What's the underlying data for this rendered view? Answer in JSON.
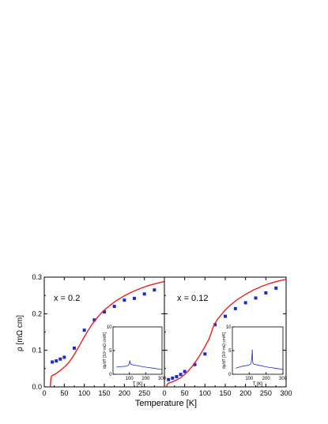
{
  "chart_data": [
    {
      "type": "line",
      "panel_label": "x = 0.2",
      "xlabel": "Temperature [K]",
      "ylabel": "ρ [mΩ cm]",
      "xlim": [
        0,
        300
      ],
      "ylim": [
        0,
        0.3
      ],
      "x_ticks": [
        "0",
        "50",
        "100",
        "150",
        "200",
        "250"
      ],
      "y_ticks": [
        "0.0",
        "0.1",
        "0.2",
        "0.3"
      ],
      "series": [
        {
          "kind": "scatter",
          "marker": "square",
          "color": "#1a2bd6",
          "x": [
            20,
            30,
            40,
            50,
            75,
            100,
            125,
            150,
            175,
            200,
            225,
            250,
            275
          ],
          "y": [
            0.068,
            0.071,
            0.076,
            0.081,
            0.106,
            0.155,
            0.183,
            0.205,
            0.22,
            0.237,
            0.242,
            0.254,
            0.265
          ]
        },
        {
          "kind": "line",
          "color": "#e8201e",
          "x": [
            15,
            16,
            17,
            18,
            20,
            25,
            30,
            40,
            50,
            60,
            70,
            80,
            90,
            100,
            110,
            120,
            130,
            140,
            150,
            160,
            170,
            180,
            200,
            220,
            240,
            260,
            280,
            300
          ],
          "y": [
            0.0,
            0.015,
            0.025,
            0.029,
            0.031,
            0.034,
            0.037,
            0.045,
            0.054,
            0.065,
            0.08,
            0.098,
            0.117,
            0.137,
            0.155,
            0.172,
            0.186,
            0.199,
            0.21,
            0.219,
            0.228,
            0.236,
            0.249,
            0.26,
            0.269,
            0.277,
            0.283,
            0.288
          ]
        }
      ],
      "inset": {
        "xlabel": "T [K]",
        "ylabel": "dρ/dT [10³ mΩ cm/K]",
        "xlim": [
          0,
          300
        ],
        "ylim": [
          0,
          10
        ],
        "x_ticks": [
          "100",
          "200",
          "300"
        ],
        "y_ticks": [
          "0",
          "5",
          "10"
        ],
        "series": [
          {
            "kind": "line",
            "color": "#1a2bd6",
            "x": [
              20,
              40,
              60,
              80,
              95,
              100,
              103,
              106,
              110,
              120,
              140,
              160,
              180,
              200,
              220,
              240,
              260,
              280,
              300
            ],
            "y": [
              1.5,
              1.6,
              1.65,
              1.7,
              1.9,
              2.3,
              2.9,
              2.4,
              2.1,
              2.0,
              1.85,
              1.75,
              1.6,
              1.5,
              1.4,
              1.3,
              1.2,
              1.1,
              1.0
            ]
          }
        ]
      }
    },
    {
      "type": "line",
      "panel_label": "x = 0.12",
      "xlabel": "Temperature [K]",
      "xlim": [
        0,
        300
      ],
      "ylim": [
        0,
        0.3
      ],
      "x_ticks": [
        "0",
        "50",
        "100",
        "150",
        "200",
        "250",
        "300"
      ],
      "series": [
        {
          "kind": "scatter",
          "marker": "square",
          "color": "#1a2bd6",
          "x": [
            10,
            20,
            30,
            40,
            50,
            75,
            100,
            125,
            150,
            175,
            200,
            225,
            250,
            275
          ],
          "y": [
            0.02,
            0.024,
            0.028,
            0.034,
            0.042,
            0.061,
            0.09,
            0.17,
            0.193,
            0.214,
            0.23,
            0.243,
            0.257,
            0.27
          ]
        },
        {
          "kind": "line",
          "color": "#e8201e",
          "x": [
            5,
            7,
            10,
            15,
            20,
            30,
            40,
            50,
            60,
            70,
            80,
            90,
            100,
            110,
            115,
            120,
            125,
            130,
            140,
            150,
            160,
            180,
            200,
            220,
            240,
            260,
            280,
            300
          ],
          "y": [
            0.0,
            0.007,
            0.01,
            0.012,
            0.014,
            0.019,
            0.025,
            0.034,
            0.045,
            0.058,
            0.074,
            0.091,
            0.11,
            0.131,
            0.146,
            0.163,
            0.174,
            0.183,
            0.197,
            0.21,
            0.221,
            0.239,
            0.253,
            0.265,
            0.275,
            0.283,
            0.289,
            0.294
          ]
        }
      ],
      "inset": {
        "xlabel": "T [K]",
        "ylabel": "dρ/dT [10³ mΩ cm/K]",
        "xlim": [
          0,
          300
        ],
        "ylim": [
          0,
          10
        ],
        "x_ticks": [
          "100",
          "200",
          "300"
        ],
        "y_ticks": [
          "0",
          "5",
          "10"
        ],
        "series": [
          {
            "kind": "line",
            "color": "#1a2bd6",
            "x": [
              20,
              40,
              60,
              80,
              100,
              110,
              115,
              118,
              120,
              122,
              125,
              130,
              150,
              170,
              190,
              210,
              230,
              250,
              270,
              300
            ],
            "y": [
              1.3,
              1.5,
              1.7,
              1.8,
              1.95,
              2.2,
              3.2,
              5.2,
              3.0,
              2.4,
              2.2,
              2.1,
              1.95,
              1.8,
              1.65,
              1.5,
              1.4,
              1.3,
              1.2,
              1.0
            ]
          }
        ]
      }
    }
  ]
}
